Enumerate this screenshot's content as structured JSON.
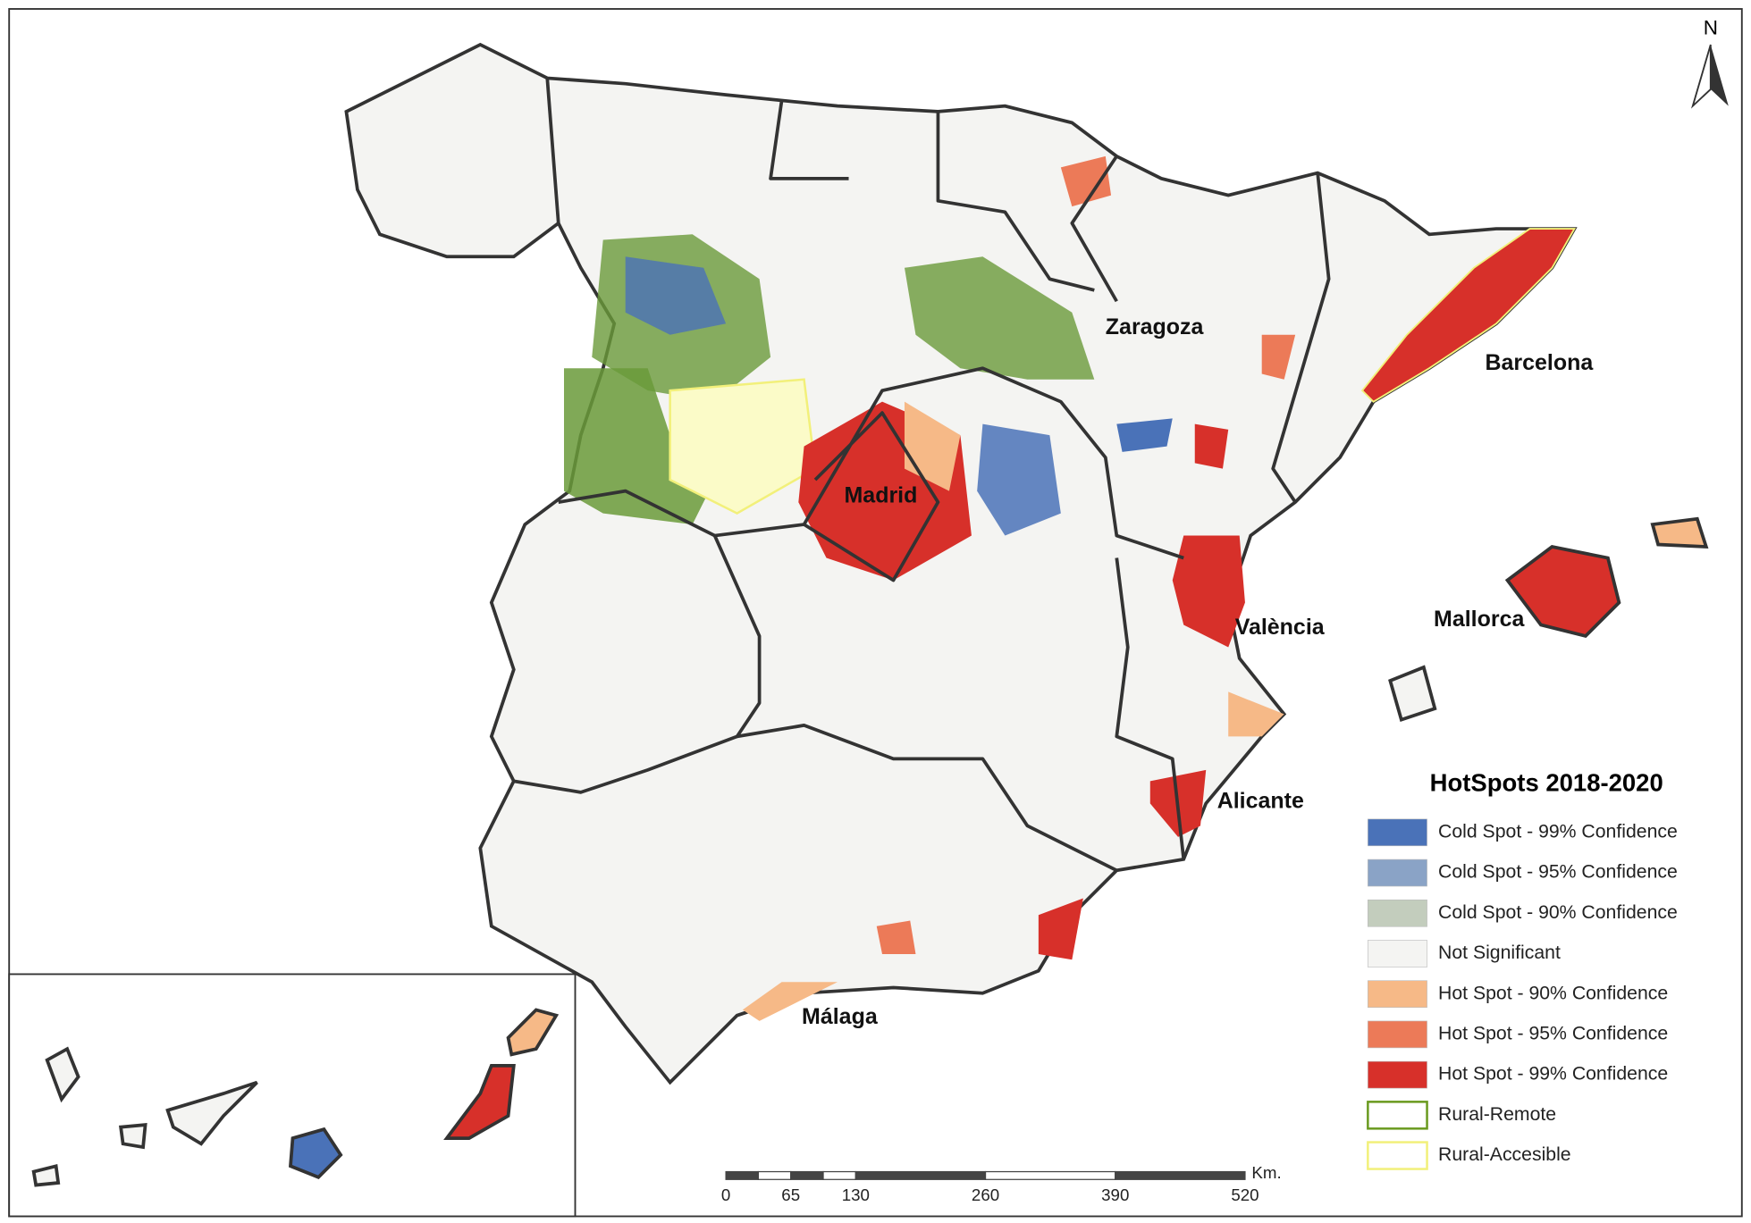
{
  "map": {
    "north": "N",
    "cities": [
      {
        "label": "Zaragoza"
      },
      {
        "label": "Barcelona"
      },
      {
        "label": "Madrid"
      },
      {
        "label": "València"
      },
      {
        "label": "Mallorca"
      },
      {
        "label": "Alicante"
      },
      {
        "label": "Málaga"
      }
    ],
    "legend": {
      "title": "HotSpots 2018-2020",
      "items": [
        {
          "label": "Cold Spot - 99% Confidence",
          "color": "#4a72b8"
        },
        {
          "label": "Cold Spot - 95% Confidence",
          "color": "#8aa3c6"
        },
        {
          "label": "Cold Spot - 90% Confidence",
          "color": "#c3cdbd"
        },
        {
          "label": "Not Significant",
          "color": "#f4f4f2"
        },
        {
          "label": "Hot Spot - 90% Confidence",
          "color": "#f6b987"
        },
        {
          "label": "Hot Spot - 95% Confidence",
          "color": "#ec7a58"
        },
        {
          "label": "Hot Spot - 99% Confidence",
          "color": "#d7302a"
        },
        {
          "label": "Rural-Remote",
          "color": "#ffffff",
          "stroke": "#6a9a1f"
        },
        {
          "label": "Rural-Accesible",
          "color": "#ffffff",
          "stroke": "#f2f07a"
        }
      ]
    },
    "scale": {
      "unit": "Km.",
      "ticks": [
        0,
        65,
        130,
        260,
        390,
        520
      ]
    }
  }
}
